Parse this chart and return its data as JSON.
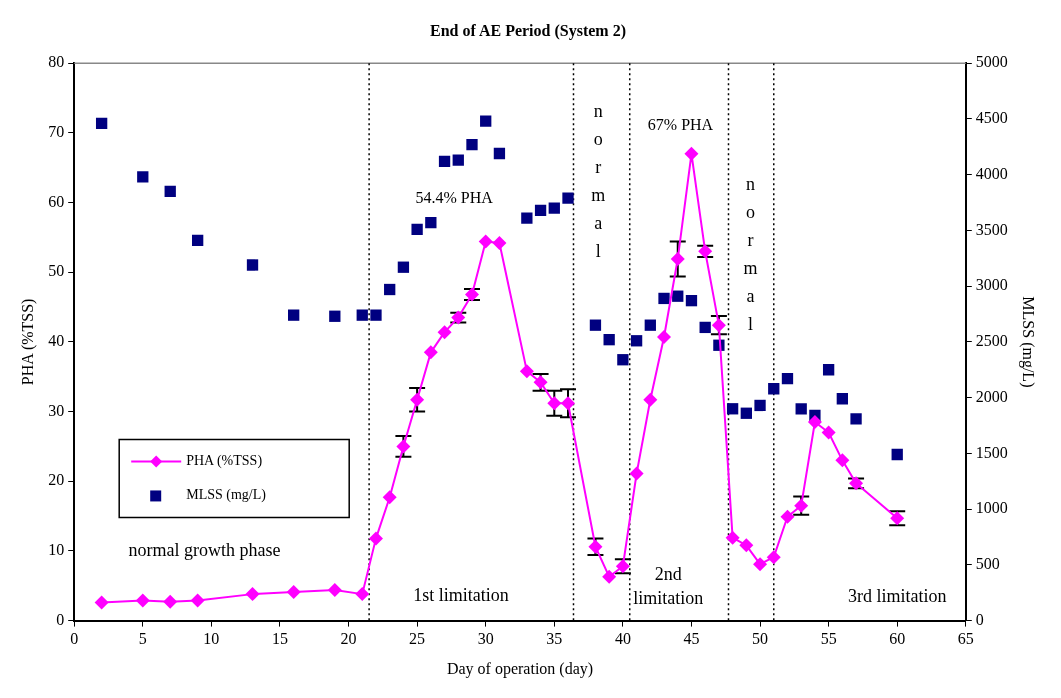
{
  "chart_data": {
    "type": "line",
    "title": "End of AE Period (System 2)",
    "xlabel": "Day of operation (day)",
    "ylabel": "PHA (%TSS)",
    "y2label": "MLSS (mg/L)",
    "xlim": [
      0,
      65
    ],
    "xticks": [
      0,
      5,
      10,
      15,
      20,
      25,
      30,
      35,
      40,
      45,
      50,
      55,
      60,
      65
    ],
    "ylim": [
      0,
      80
    ],
    "yticks": [
      0,
      10,
      20,
      30,
      40,
      50,
      60,
      70,
      80
    ],
    "y2lim": [
      0,
      5000
    ],
    "y2ticks": [
      0,
      500,
      1000,
      1500,
      2000,
      2500,
      3000,
      3500,
      4000,
      4500,
      5000
    ],
    "grid": false,
    "legend": "left",
    "series": [
      {
        "name": "PHA (%TSS)",
        "color": "#ff00ff",
        "marker": "diamond",
        "line_style": "solid",
        "x": [
          2,
          5,
          7,
          9,
          13,
          16,
          19,
          21,
          22,
          23,
          24,
          25,
          26,
          27,
          28,
          29,
          30,
          31,
          33,
          34,
          35,
          36,
          38,
          39,
          40,
          41,
          42,
          43,
          44,
          45,
          46,
          47,
          48,
          49,
          50,
          51,
          52,
          53,
          54,
          55,
          56,
          57,
          60
        ],
        "values": [
          2.6,
          2.9,
          2.7,
          2.9,
          3.8,
          4.1,
          4.4,
          3.8,
          11.8,
          17.7,
          25.0,
          31.7,
          38.5,
          41.4,
          43.5,
          46.8,
          54.4,
          54.2,
          35.8,
          34.2,
          31.2,
          31.2,
          10.6,
          6.3,
          7.8,
          21.1,
          31.7,
          40.7,
          51.9,
          67.0,
          53.0,
          42.4,
          11.9,
          10.8,
          8.1,
          9.1,
          14.9,
          16.5,
          28.5,
          27.0,
          23.0,
          19.7,
          14.7
        ],
        "errors": [
          null,
          null,
          null,
          null,
          null,
          null,
          null,
          null,
          null,
          null,
          1.5,
          1.7,
          null,
          null,
          0.7,
          0.8,
          null,
          null,
          null,
          1.2,
          1.8,
          2.0,
          1.2,
          null,
          1.0,
          null,
          null,
          null,
          2.5,
          null,
          0.8,
          1.3,
          null,
          null,
          null,
          null,
          null,
          1.3,
          null,
          null,
          null,
          0.7,
          1.0
        ]
      },
      {
        "name": "MLSS (mg/L)",
        "type": "scatter",
        "axis": "y2",
        "color": "#000080",
        "marker": "square",
        "x": [
          2,
          5,
          7,
          9,
          13,
          16,
          19,
          21,
          22,
          23,
          24,
          25,
          26,
          27,
          28,
          29,
          30,
          31,
          33,
          34,
          35,
          36,
          38,
          39,
          40,
          41,
          42,
          43,
          44,
          45,
          46,
          47,
          48,
          49,
          50,
          51,
          52,
          53,
          54,
          55,
          56,
          57,
          60
        ],
        "values": [
          4460,
          3980,
          3850,
          3410,
          3190,
          2740,
          2730,
          2740,
          2740,
          2970,
          3170,
          3510,
          3570,
          4120,
          4130,
          4270,
          4480,
          4190,
          3610,
          3680,
          3700,
          3790,
          2650,
          2520,
          2340,
          2510,
          2650,
          2890,
          2910,
          2870,
          2630,
          2470,
          1900,
          1860,
          1930,
          2080,
          2170,
          1900,
          1840,
          2250,
          1990,
          1810,
          1490
        ]
      }
    ],
    "ref_lines": [
      {
        "axis": "x",
        "value": 21.5,
        "line_style": "dotted",
        "color": "#000000"
      },
      {
        "axis": "x",
        "value": 36.4,
        "line_style": "dotted",
        "color": "#000000"
      },
      {
        "axis": "x",
        "value": 40.5,
        "line_style": "dotted",
        "color": "#000000"
      },
      {
        "axis": "x",
        "value": 47.7,
        "line_style": "dotted",
        "color": "#000000"
      },
      {
        "axis": "x",
        "value": 51.0,
        "line_style": "dotted",
        "color": "#000000"
      }
    ],
    "annotations": [
      {
        "text": "54.4% PHA",
        "x": 30,
        "y": 54.4
      },
      {
        "text": "67% PHA",
        "x": 45,
        "y": 67
      },
      "normal growth phase",
      "1st limitation",
      "normal",
      "2nd limitation",
      "normal",
      "3rd limitation"
    ]
  }
}
